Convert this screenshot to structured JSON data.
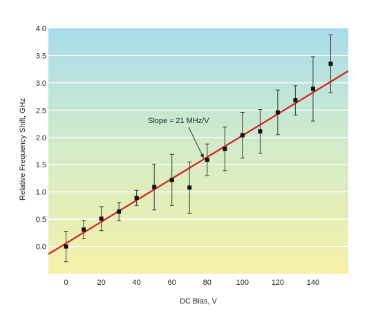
{
  "chart_data": {
    "type": "scatter",
    "title": "",
    "xlabel": "DC Bias, V",
    "ylabel": "Relative Frequency Shift, GHz",
    "xlim": [
      -10,
      160
    ],
    "ylim": [
      -0.5,
      4.0
    ],
    "xticks": [
      0,
      20,
      40,
      60,
      80,
      100,
      120,
      140
    ],
    "yticks": [
      0.0,
      0.5,
      1.0,
      1.5,
      2.0,
      2.5,
      3.0,
      3.5,
      4.0
    ],
    "xtick_labels": [
      "0",
      "20",
      "40",
      "60",
      "80",
      "100",
      "120",
      "140"
    ],
    "ytick_labels": [
      "0.0",
      "0.5",
      "1.0",
      "1.5",
      "2.0",
      "2.5",
      "3.0",
      "3.5",
      "4.0"
    ],
    "grid": "horizontal",
    "series": [
      {
        "type": "scatter",
        "color": "#111111",
        "x": [
          0,
          10,
          20,
          30,
          40,
          50,
          60,
          70,
          80,
          90,
          100,
          110,
          120,
          130,
          140,
          150
        ],
        "y": [
          0.0,
          0.31,
          0.51,
          0.64,
          0.89,
          1.09,
          1.22,
          1.08,
          1.59,
          1.79,
          2.04,
          2.11,
          2.46,
          2.68,
          2.89,
          3.35
        ],
        "yerr": [
          0.28,
          0.17,
          0.22,
          0.17,
          0.14,
          0.42,
          0.47,
          0.47,
          0.29,
          0.4,
          0.42,
          0.4,
          0.41,
          0.27,
          0.59,
          0.53
        ]
      },
      {
        "type": "line",
        "color": "#d42020",
        "x": [
          -10,
          160
        ],
        "y": [
          -0.14,
          3.22
        ]
      }
    ],
    "annotations": [
      {
        "text": "Slope ≈ 21 MHz/V",
        "x": 78,
        "y": 1.62
      }
    ],
    "background_gradient": {
      "top": "#a8dcec",
      "middle": "#d4ecc8",
      "bottom": "#f6f0a8"
    }
  }
}
